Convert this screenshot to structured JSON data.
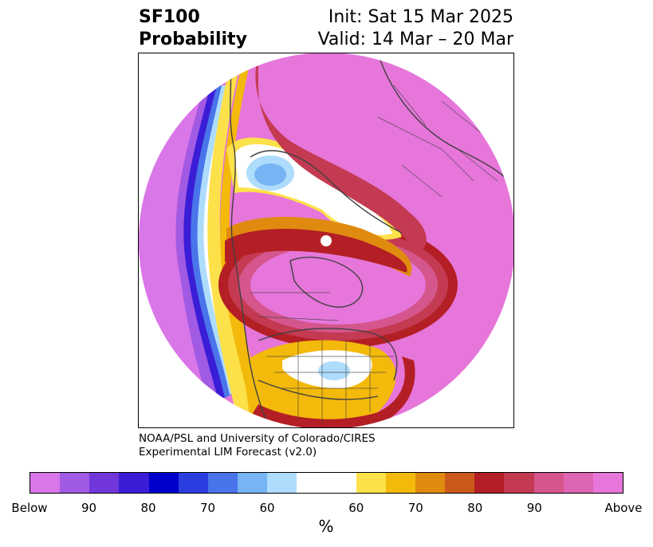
{
  "title": {
    "field_line1": "SF100",
    "field_line2": "Probability",
    "init_line": "Init: Sat 15 Mar 2025",
    "valid_line": "Valid: 14 Mar – 20 Mar"
  },
  "credit": {
    "line1": "NOAA/PSL and University of Colorado/CIRES",
    "line2": "Experimental LIM Forecast (v2.0)"
  },
  "colorbar": {
    "unit_label": "%",
    "below_colors": [
      "#d976e8",
      "#a15ae3",
      "#7237db",
      "#3a1dd6",
      "#0000cc",
      "#2a3ee0",
      "#4a74ea",
      "#76b4f4",
      "#aedcfc"
    ],
    "neutral_color": "#ffffff",
    "above_colors": [
      "#fde14a",
      "#f3b90b",
      "#e08a0f",
      "#c95a1a",
      "#b31f24",
      "#c43a52",
      "#d4568c",
      "#de64b4",
      "#e676da"
    ],
    "tick_labels": [
      "Below",
      "90",
      "80",
      "70",
      "60",
      "60",
      "70",
      "80",
      "90",
      "Above"
    ]
  },
  "map": {
    "projection": "north-polar-stereographic",
    "features": [
      "coastlines",
      "country-borders",
      "us-state-borders",
      "canada-province-borders"
    ],
    "pole_marker_color": "#ffffff"
  }
}
